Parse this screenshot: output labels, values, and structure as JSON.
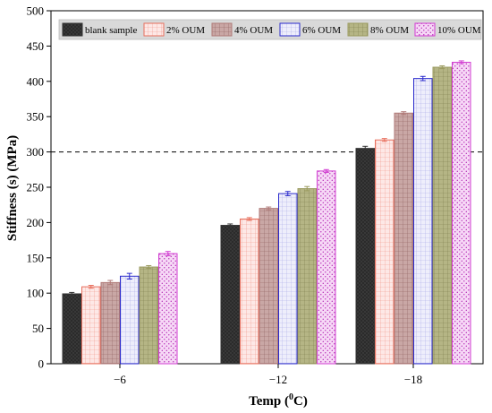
{
  "chart_data": {
    "type": "bar",
    "title": "",
    "xlabel": "Temp (",
    "xlabel_sup": "0",
    "xlabel_suffix": "C)",
    "ylabel": "Stiffness (s) (MPa)",
    "ylim": [
      0,
      500
    ],
    "yticks": [
      0,
      50,
      100,
      150,
      200,
      250,
      300,
      350,
      400,
      450,
      500
    ],
    "categories": [
      "−6",
      "−12",
      "−18"
    ],
    "reference_line": 300,
    "legend_position": "top",
    "series": [
      {
        "name": "blank sample",
        "values": [
          99,
          196,
          305
        ],
        "errors": [
          2,
          2,
          3
        ],
        "color": "#333333",
        "pattern": "solid"
      },
      {
        "name": "2% OUM",
        "values": [
          109,
          205,
          317
        ],
        "errors": [
          2,
          2,
          2
        ],
        "color": "#e8705e",
        "pattern": "grid"
      },
      {
        "name": "4% OUM",
        "values": [
          115,
          220,
          355
        ],
        "errors": [
          3,
          2,
          2
        ],
        "color": "#b07a78",
        "pattern": "grid"
      },
      {
        "name": "6% OUM",
        "values": [
          124,
          241,
          404
        ],
        "errors": [
          4,
          3,
          3
        ],
        "color": "#2a2acc",
        "pattern": "grid"
      },
      {
        "name": "8% OUM",
        "values": [
          137,
          248,
          420
        ],
        "errors": [
          2,
          3,
          2
        ],
        "color": "#9a9a5e",
        "pattern": "grid"
      },
      {
        "name": "10% OUM",
        "values": [
          156,
          273,
          427
        ],
        "errors": [
          3,
          2,
          2
        ],
        "color": "#d23cd2",
        "pattern": "dots"
      }
    ]
  }
}
